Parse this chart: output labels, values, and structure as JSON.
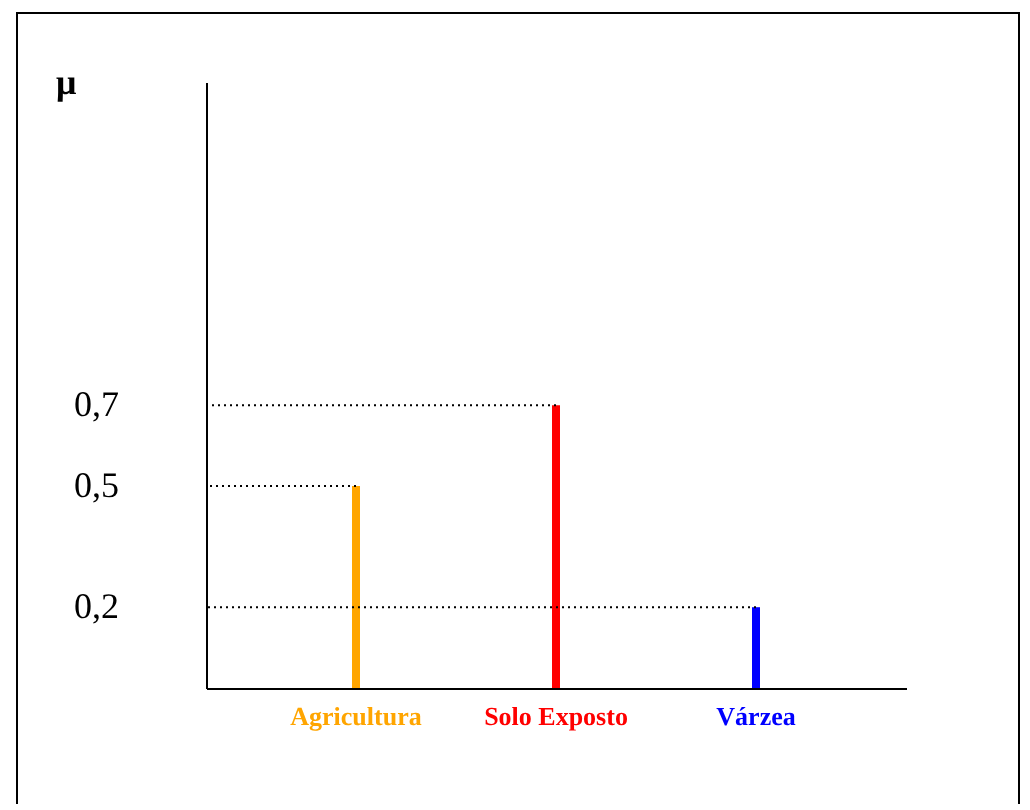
{
  "chart_data": {
    "type": "bar",
    "ylabel": "μ",
    "categories": [
      "Agricultura",
      "Solo Exposto",
      "Várzea"
    ],
    "values": [
      0.5,
      0.7,
      0.2
    ],
    "colors": [
      "#ffa500",
      "#ff0000",
      "#0000ff"
    ],
    "ylim": [
      0,
      1.5
    ],
    "yticks": [
      {
        "value": 0.2,
        "label": "0,2"
      },
      {
        "value": 0.5,
        "label": "0,5"
      },
      {
        "value": 0.7,
        "label": "0,7"
      }
    ],
    "grid": false,
    "legend": false,
    "ref_lines": [
      {
        "axis": "y",
        "value": 0.5,
        "line_style": "dotted"
      },
      {
        "axis": "y",
        "value": 0.7,
        "line_style": "dotted"
      },
      {
        "axis": "y",
        "value": 0.2,
        "line_style": "dotted"
      }
    ]
  }
}
